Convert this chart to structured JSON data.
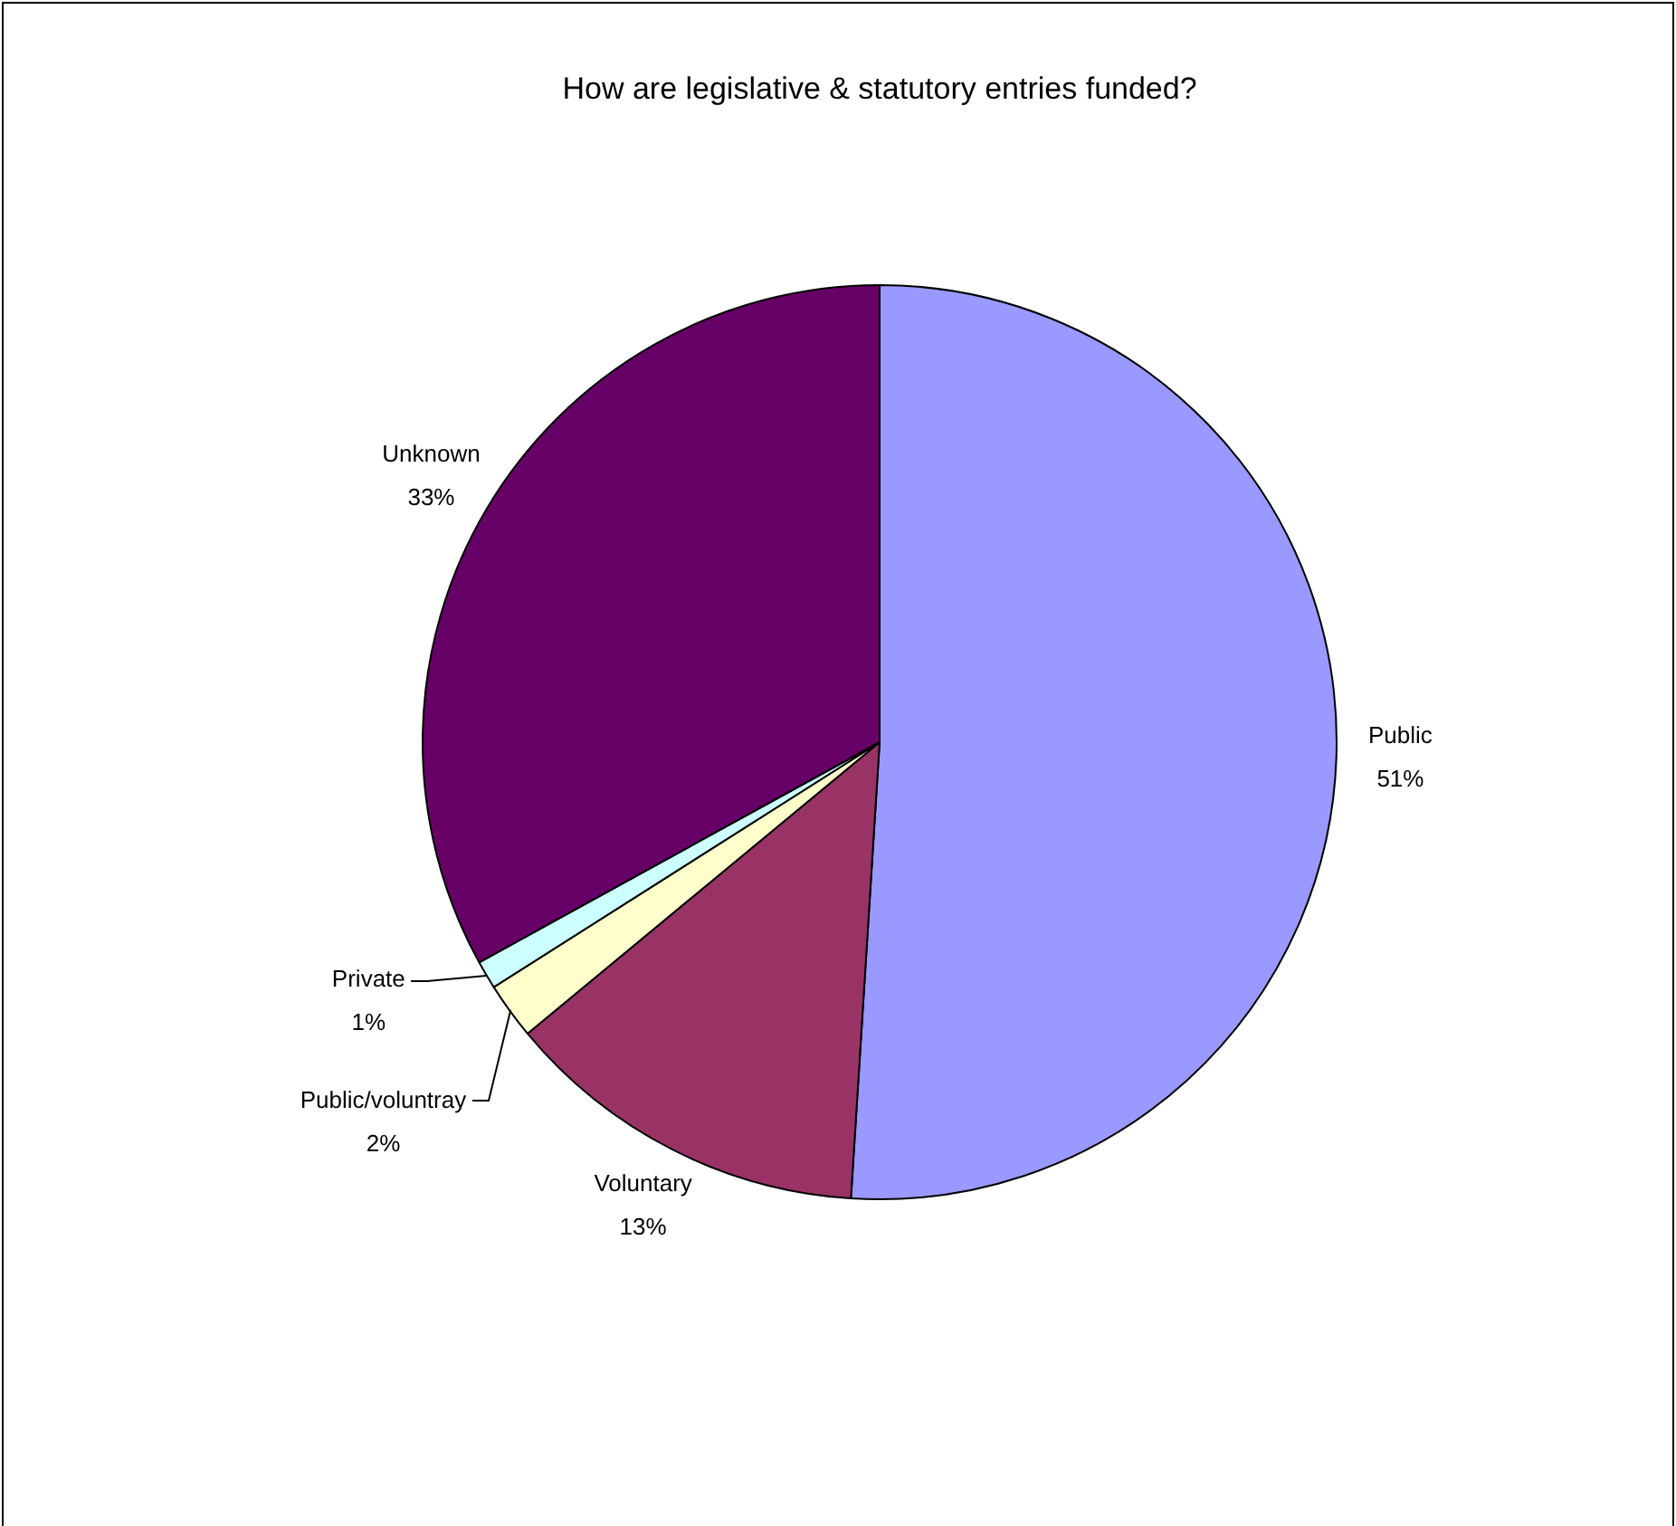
{
  "chart_data": {
    "type": "pie",
    "title": "How are legislative & statutory entries funded?",
    "categories": [
      "Public",
      "Voluntary",
      "Public/voluntray",
      "Private",
      "Unknown"
    ],
    "values": [
      51,
      13,
      2,
      1,
      33
    ],
    "value_labels": [
      "51%",
      "13%",
      "2%",
      "1%",
      "33%"
    ],
    "colors": [
      "#9999ff",
      "#993366",
      "#ffffcc",
      "#ccffff",
      "#660066"
    ],
    "legend": false
  }
}
